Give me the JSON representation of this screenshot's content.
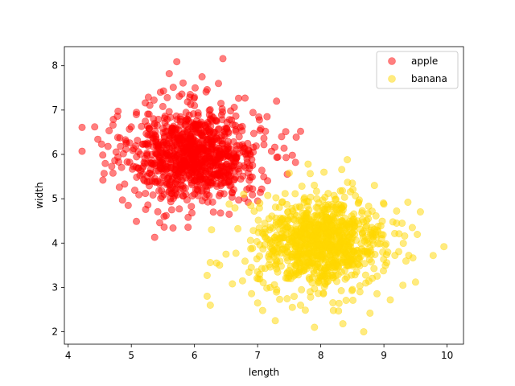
{
  "chart_data": {
    "type": "scatter",
    "title": "",
    "xlabel": "length",
    "ylabel": "width",
    "xlim": [
      3.94,
      10.26
    ],
    "ylim": [
      1.72,
      8.43
    ],
    "xticks": [
      4,
      5,
      6,
      7,
      8,
      9,
      10
    ],
    "yticks": [
      2,
      3,
      4,
      5,
      6,
      7,
      8
    ],
    "grid": false,
    "legend_position": "top-right",
    "point_alpha": 0.5,
    "series": [
      {
        "name": "apple",
        "color": "#ff0000",
        "center": [
          6.0,
          6.0
        ],
        "spread": [
          0.5,
          0.5
        ],
        "count": 1000,
        "points": [
          [
            4.22,
            6.61
          ],
          [
            4.22,
            6.07
          ],
          [
            4.42,
            6.62
          ],
          [
            4.47,
            6.34
          ],
          [
            4.53,
            6.23
          ],
          [
            4.55,
            5.42
          ],
          [
            4.57,
            5.57
          ],
          [
            4.63,
            6.18
          ],
          [
            4.69,
            5.73
          ],
          [
            4.71,
            6.66
          ],
          [
            4.78,
            6.86
          ],
          [
            4.81,
            5.26
          ],
          [
            4.86,
            4.97
          ],
          [
            4.92,
            6.25
          ],
          [
            4.95,
            4.85
          ],
          [
            5.0,
            6.62
          ],
          [
            5.08,
            4.49
          ],
          [
            5.12,
            5.09
          ],
          [
            5.22,
            7.16
          ],
          [
            5.27,
            7.29
          ],
          [
            5.37,
            4.13
          ],
          [
            5.45,
            4.46
          ],
          [
            5.5,
            7.08
          ],
          [
            5.51,
            7.43
          ],
          [
            5.52,
            4.36
          ],
          [
            5.55,
            4.62
          ],
          [
            5.57,
            7.28
          ],
          [
            5.6,
            7.82
          ],
          [
            5.64,
            4.75
          ],
          [
            5.66,
            4.34
          ],
          [
            5.72,
            8.09
          ],
          [
            5.76,
            4.77
          ],
          [
            5.8,
            7.36
          ],
          [
            5.82,
            7.61
          ],
          [
            5.9,
            4.58
          ],
          [
            5.96,
            4.68
          ],
          [
            6.01,
            7.5
          ],
          [
            6.12,
            7.75
          ],
          [
            6.2,
            7.46
          ],
          [
            6.3,
            4.7
          ],
          [
            6.38,
            7.6
          ],
          [
            6.42,
            7.15
          ],
          [
            6.45,
            8.16
          ],
          [
            6.55,
            4.65
          ],
          [
            6.63,
            7.06
          ],
          [
            6.7,
            4.97
          ],
          [
            6.8,
            7.27
          ],
          [
            6.85,
            4.92
          ],
          [
            6.92,
            5.22
          ],
          [
            7.0,
            4.95
          ],
          [
            7.05,
            6.58
          ],
          [
            7.1,
            6.22
          ],
          [
            7.15,
            6.85
          ],
          [
            7.22,
            6.07
          ],
          [
            7.3,
            7.2
          ],
          [
            7.38,
            6.4
          ],
          [
            7.45,
            5.93
          ],
          [
            7.55,
            5.98
          ],
          [
            7.6,
            5.82
          ],
          [
            7.68,
            6.52
          ],
          [
            6.28,
            5.35
          ]
        ]
      },
      {
        "name": "banana",
        "color": "#ffd700",
        "center": [
          8.0,
          4.0
        ],
        "spread": [
          0.5,
          0.5
        ],
        "count": 1000,
        "points": [
          [
            6.2,
            2.8
          ],
          [
            6.2,
            3.27
          ],
          [
            6.27,
            4.3
          ],
          [
            6.35,
            3.55
          ],
          [
            6.5,
            3.75
          ],
          [
            6.55,
            4.88
          ],
          [
            6.6,
            3.08
          ],
          [
            6.78,
            5.1
          ],
          [
            6.9,
            3.45
          ],
          [
            7.0,
            2.65
          ],
          [
            7.08,
            2.48
          ],
          [
            7.2,
            3.0
          ],
          [
            7.28,
            2.25
          ],
          [
            7.35,
            2.73
          ],
          [
            7.5,
            5.58
          ],
          [
            7.55,
            2.55
          ],
          [
            7.68,
            2.6
          ],
          [
            7.8,
            5.78
          ],
          [
            7.9,
            2.1
          ],
          [
            8.05,
            5.6
          ],
          [
            8.2,
            2.48
          ],
          [
            8.35,
            2.18
          ],
          [
            8.42,
            5.88
          ],
          [
            8.5,
            5.35
          ],
          [
            8.62,
            2.9
          ],
          [
            8.68,
            2.0
          ],
          [
            8.78,
            2.42
          ],
          [
            8.85,
            5.3
          ],
          [
            9.0,
            4.88
          ],
          [
            9.1,
            2.72
          ],
          [
            9.2,
            4.45
          ],
          [
            9.3,
            3.05
          ],
          [
            9.38,
            4.92
          ],
          [
            9.45,
            4.35
          ],
          [
            9.5,
            3.12
          ],
          [
            9.78,
            3.72
          ],
          [
            9.95,
            3.92
          ]
        ]
      }
    ]
  }
}
